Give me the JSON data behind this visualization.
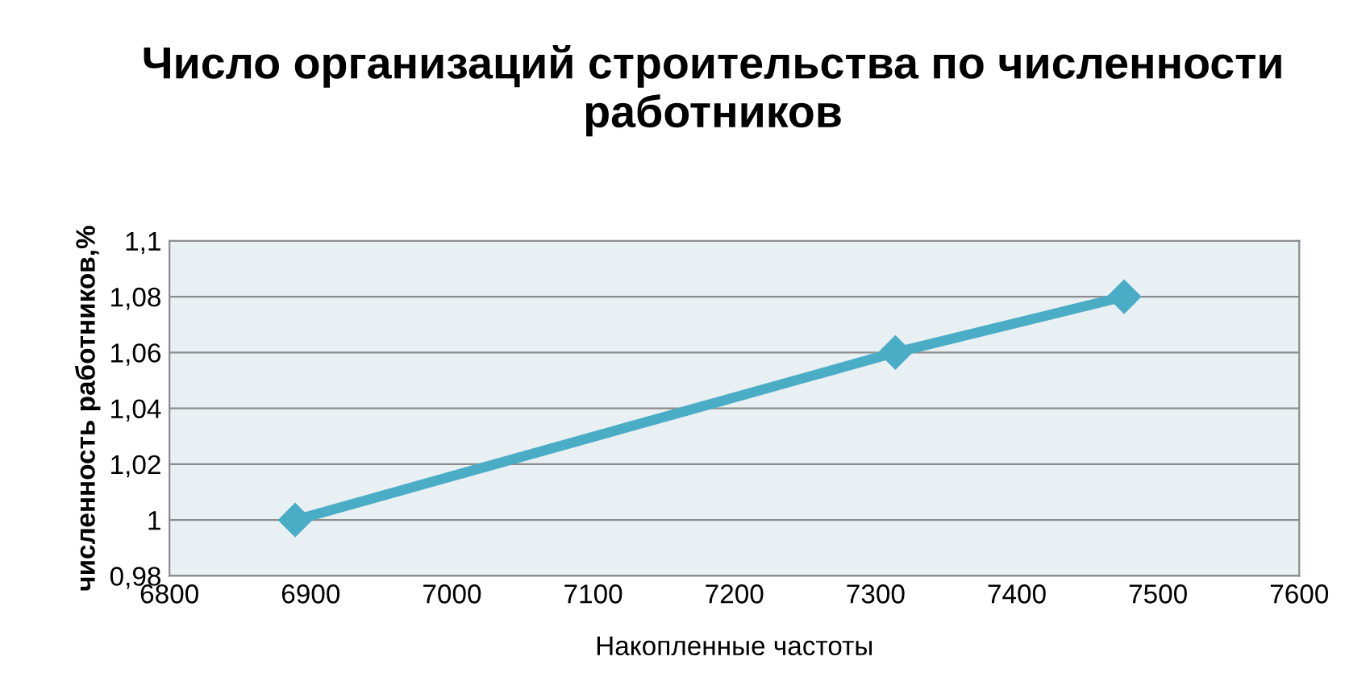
{
  "chart_data": {
    "type": "line",
    "title": "Число организаций строительства по численности работников",
    "xlabel": "Накопленные частоты",
    "ylabel": "численность работников,%",
    "x": [
      6889,
      7314,
      7476
    ],
    "series": [
      {
        "color": "#4bacc6",
        "values": [
          1,
          1.06,
          1.08
        ]
      }
    ],
    "xlim": [
      6800,
      7600
    ],
    "xticks": [
      6800,
      6900,
      7000,
      7100,
      7200,
      7300,
      7400,
      7500,
      7600
    ],
    "ylim": [
      0.98,
      1.1
    ],
    "yticks": [
      {
        "value": 0.98,
        "label": "0,98"
      },
      {
        "value": 1,
        "label": "1"
      },
      {
        "value": 1.02,
        "label": "1,02"
      },
      {
        "value": 1.04,
        "label": "1,04"
      },
      {
        "value": 1.06,
        "label": "1,06"
      },
      {
        "value": 1.08,
        "label": "1,08"
      },
      {
        "value": 1.1,
        "label": "1,1"
      }
    ],
    "grid": "y",
    "marker": "diamond",
    "line_style": "solid",
    "legend": false
  }
}
